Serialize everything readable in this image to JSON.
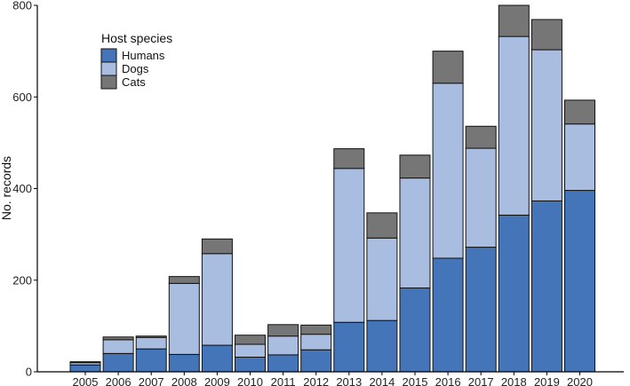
{
  "chart_data": {
    "type": "bar",
    "stacked": true,
    "title": "",
    "xlabel": "",
    "ylabel": "No. records",
    "ylim": [
      0,
      800
    ],
    "yticks": [
      0,
      200,
      400,
      600,
      800
    ],
    "grid": false,
    "categories": [
      "2005",
      "2006",
      "2007",
      "2008",
      "2009",
      "2010",
      "2011",
      "2012",
      "2013",
      "2014",
      "2015",
      "2016",
      "2017",
      "2018",
      "2019",
      "2020"
    ],
    "series": [
      {
        "name": "Humans",
        "color": "#4575b9",
        "values": [
          15,
          40,
          50,
          38,
          58,
          32,
          37,
          48,
          108,
          112,
          183,
          248,
          272,
          342,
          373,
          396
        ]
      },
      {
        "name": "Dogs",
        "color": "#a9bde0",
        "values": [
          5,
          30,
          25,
          155,
          200,
          28,
          41,
          34,
          336,
          180,
          240,
          382,
          216,
          390,
          330,
          145
        ]
      },
      {
        "name": "Cats",
        "color": "#767676",
        "values": [
          2,
          6,
          3,
          15,
          32,
          20,
          25,
          20,
          43,
          55,
          50,
          70,
          48,
          68,
          66,
          52
        ]
      }
    ],
    "legend": {
      "title": "Host species",
      "position": "top-left",
      "labels": [
        "Humans",
        "Dogs",
        "Cats"
      ]
    }
  }
}
